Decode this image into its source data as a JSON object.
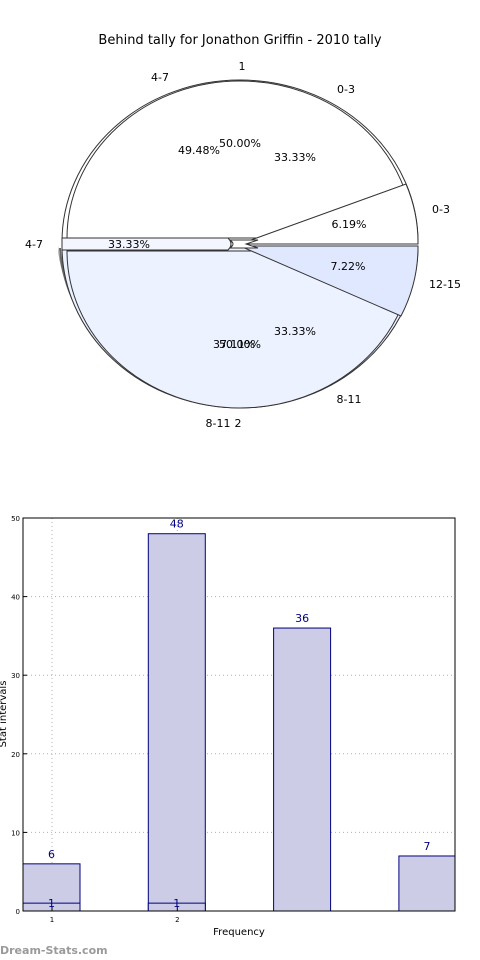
{
  "pie": {
    "title": "Behind tally for Jonathon Griffin - 2010 tally",
    "outer_rings": [
      {
        "name": "ring-1",
        "color": "#ffffff",
        "slices": [
          {
            "label": "1",
            "pct": "50.00%",
            "value": 50.0
          },
          {
            "label": "2",
            "pct": "50.00%",
            "value": 50.0
          }
        ]
      },
      {
        "name": "ring-2",
        "color": "#ffffff",
        "slices": [
          {
            "label": "4-7",
            "pct": "33.33%",
            "value": 33.33
          },
          {
            "label": "0-3",
            "pct": "33.33%",
            "value": 33.33
          },
          {
            "label": "8-11",
            "pct": "33.33%",
            "value": 33.33
          }
        ]
      },
      {
        "name": "ring-3",
        "color": "#eef3ff",
        "slices": [
          {
            "label": "4-7",
            "pct": "49.48%",
            "value": 49.48
          },
          {
            "label": "0-3",
            "pct": "6.19%",
            "value": 6.19
          },
          {
            "label": "12-15",
            "pct": "7.22%",
            "value": 7.22
          },
          {
            "label": "8-11",
            "pct": "37.11%",
            "value": 37.11
          }
        ]
      }
    ],
    "colors": {
      "top": "#ffffff",
      "bottom": "#ecf2ff",
      "edge": "#333333",
      "shadow": "#7f7f7f"
    }
  },
  "chart_data": {
    "type": "bar",
    "x": [
      1,
      2,
      3,
      4
    ],
    "xticks": [
      "1",
      "2"
    ],
    "series": [
      {
        "values": [
          6,
          48,
          36,
          7
        ],
        "labels": [
          "6",
          "48",
          "36",
          "7"
        ]
      },
      {
        "values": [
          1,
          1,
          0,
          0
        ],
        "labels": [
          "1",
          "1",
          "",
          ""
        ]
      }
    ],
    "xlabel": "Frequency",
    "ylabel": "Stat intervals",
    "ylim": [
      0,
      50
    ],
    "yticks": [
      "0",
      "10",
      "20",
      "30",
      "40",
      "50"
    ],
    "grid": true,
    "bar_color": "#cccce6",
    "edge_color": "#000080"
  },
  "watermark": "Dream-Stats.com"
}
